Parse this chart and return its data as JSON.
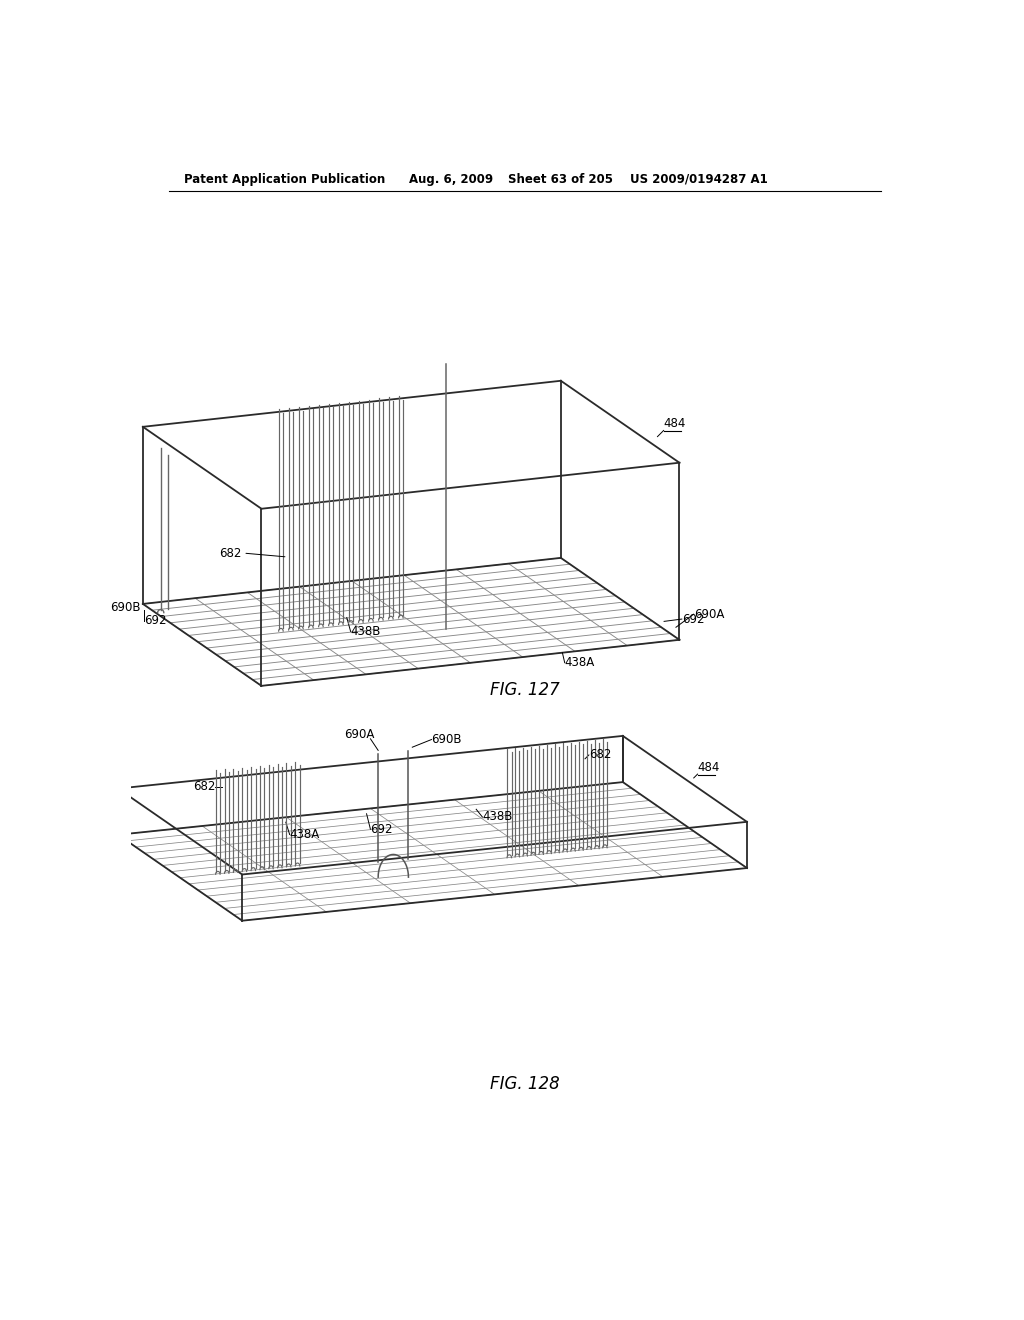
{
  "background_color": "#ffffff",
  "header_text": "Patent Application Publication",
  "header_date": "Aug. 6, 2009",
  "header_sheet": "Sheet 63 of 205",
  "header_patent": "US 2009/0194287 A1",
  "fig1_caption": "FIG. 127",
  "fig2_caption": "FIG. 128",
  "line_color": "#2a2a2a",
  "grid_color": "#aaaaaa",
  "heater_color": "#555555",
  "label_fontsize": 8.5,
  "header_fontsize": 8.5,
  "caption_fontsize": 12
}
